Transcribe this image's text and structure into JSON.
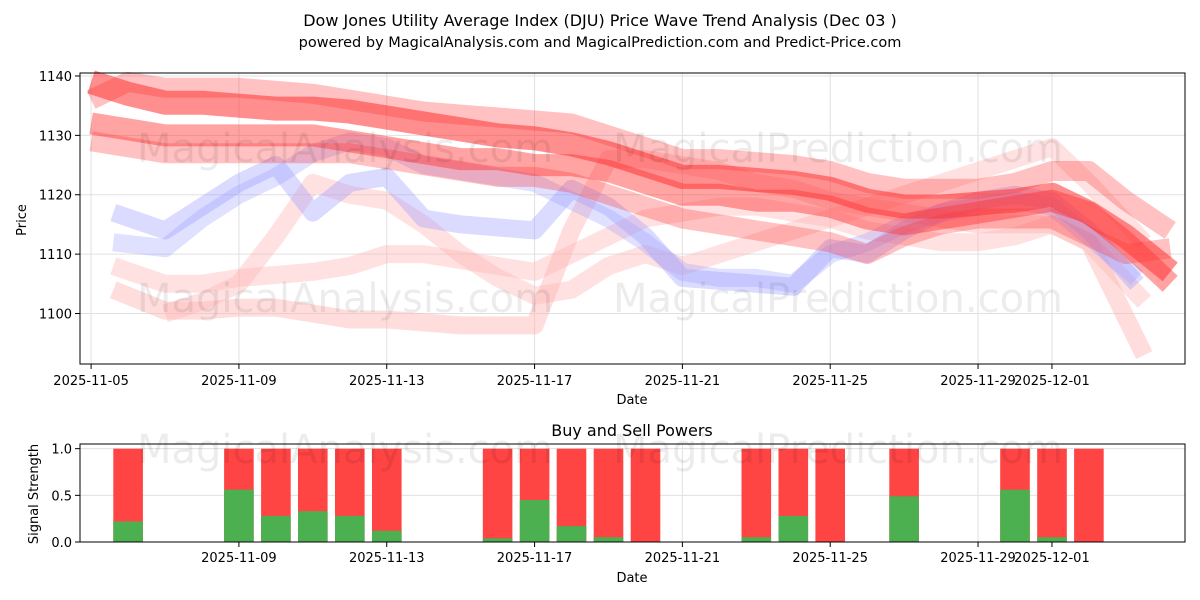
{
  "title": "Dow Jones Utility Average Index (DJU) Price Wave Trend Analysis (Dec 03 )",
  "subtitle": "powered by MagicalAnalysis.com and MagicalPrediction.com and Predict-Price.com",
  "watermarks": [
    "MagicalAnalysis.com",
    "MagicalPrediction.com"
  ],
  "colors": {
    "sell": "#ff4444",
    "buy": "#4caf50",
    "red_wave": "#ff3333",
    "pink_wave": "#ffb3b3",
    "blue_wave": "#9999ff",
    "grid": "#e0e0e0"
  },
  "chart_data": [
    {
      "type": "line",
      "title": "",
      "xlabel": "Date",
      "ylabel": "Price",
      "x_start": "2025-11-05",
      "xlim": [
        -0.3,
        29.6
      ],
      "ylim": [
        1091.5,
        1140.5
      ],
      "x_ticks": [
        {
          "day": 0,
          "label": "2025-11-05"
        },
        {
          "day": 4,
          "label": "2025-11-09"
        },
        {
          "day": 8,
          "label": "2025-11-13"
        },
        {
          "day": 12,
          "label": "2025-11-17"
        },
        {
          "day": 16,
          "label": "2025-11-21"
        },
        {
          "day": 20,
          "label": "2025-11-25"
        },
        {
          "day": 24,
          "label": "2025-11-29"
        },
        {
          "day": 26,
          "label": "2025-12-01"
        }
      ],
      "y_ticks": [
        1100,
        1110,
        1120,
        1130,
        1140
      ],
      "grid": true,
      "series": [
        {
          "name": "pink-wave-low",
          "color": "pink",
          "width": 18,
          "opacity": 0.45,
          "x": [
            0.6,
            2,
            3,
            4,
            5,
            6,
            7,
            8,
            9,
            10,
            11,
            12,
            13,
            14,
            15,
            16,
            17,
            18,
            19,
            20,
            21,
            22,
            23,
            24,
            25,
            26,
            27,
            28.5
          ],
          "y": [
            1104,
            1100.5,
            1100.5,
            1101,
            1101,
            1100,
            1099,
            1099,
            1098.5,
            1098,
            1098,
            1098,
            1114,
            1126,
            1126,
            1125,
            1124,
            1122,
            1121,
            1119,
            1118,
            1117,
            1116,
            1115,
            1115,
            1115,
            1112,
            1093
          ]
        },
        {
          "name": "pink-wave-mid",
          "color": "pink",
          "width": 18,
          "opacity": 0.4,
          "x": [
            0.6,
            2,
            3,
            4,
            5,
            6,
            7,
            8,
            9,
            10,
            11,
            12,
            13,
            14,
            15,
            16,
            17,
            18,
            19,
            20,
            21,
            22,
            23,
            24,
            25,
            26,
            27,
            28.5
          ],
          "y": [
            1108,
            1105,
            1105,
            1106,
            1106.5,
            1107,
            1108,
            1110,
            1110,
            1109,
            1108,
            1107,
            1110,
            1113,
            1116,
            1117,
            1118,
            1118,
            1117,
            1116,
            1114,
            1113,
            1112,
            1112,
            1113,
            1115,
            1112,
            1102
          ]
        },
        {
          "name": "pink-wave-high",
          "color": "pink",
          "width": 18,
          "opacity": 0.4,
          "x": [
            2,
            3,
            4,
            5,
            6,
            7,
            8,
            9,
            10,
            11,
            12,
            13,
            14,
            15,
            16,
            17,
            18,
            19,
            20,
            21,
            22,
            23,
            24,
            25,
            26,
            27,
            28.5
          ],
          "y": [
            1100,
            1102,
            1105,
            1113,
            1122,
            1120,
            1119,
            1115,
            1110,
            1106,
            1103,
            1104,
            1108,
            1110,
            1108,
            1110,
            1112,
            1114,
            1116,
            1118,
            1120,
            1122,
            1124,
            1126,
            1128,
            1122,
            1112
          ]
        },
        {
          "name": "blue-wave",
          "color": "blue",
          "width": 18,
          "opacity": 0.35,
          "x": [
            0.6,
            2,
            3,
            4,
            5,
            6,
            7,
            8,
            9,
            10,
            11,
            12,
            13,
            14,
            15,
            16,
            17,
            18,
            19,
            20,
            21,
            22,
            23,
            24,
            25,
            26,
            27,
            28.3
          ],
          "y": [
            1117,
            1114,
            1118,
            1122,
            1125,
            1117,
            1122,
            1123,
            1116,
            1115,
            1114.5,
            1114,
            1121,
            1118,
            1113,
            1106,
            1105.5,
            1105,
            1104.5,
            1111,
            1110,
            1114,
            1117,
            1119,
            1120,
            1119,
            1114,
            1105
          ]
        },
        {
          "name": "blue-wave-2",
          "color": "blue",
          "width": 18,
          "opacity": 0.3,
          "x": [
            0.6,
            2,
            3,
            4,
            5,
            6,
            7,
            8,
            9,
            10,
            11,
            12,
            13,
            14,
            15,
            16,
            17,
            18,
            19,
            20,
            21,
            22,
            23,
            24,
            25,
            26,
            27,
            28.3
          ],
          "y": [
            1112,
            1111,
            1116,
            1120,
            1123,
            1127,
            1129,
            1128,
            1125,
            1124,
            1123,
            1122,
            1119,
            1116,
            1112,
            1107,
            1106,
            1106,
            1105,
            1110,
            1112,
            1115,
            1117,
            1118,
            1119,
            1118,
            1113,
            1106
          ]
        },
        {
          "name": "red-wave-band-low",
          "color": "red",
          "width": 20,
          "opacity": 0.3,
          "x": [
            0,
            1,
            2,
            3,
            4,
            5,
            6,
            7,
            8,
            9,
            10,
            11,
            12,
            13,
            14,
            15,
            16,
            17,
            18,
            19,
            20,
            21,
            22,
            23,
            24,
            25,
            26,
            27,
            28,
            29.2
          ],
          "y": [
            1129,
            1128,
            1127,
            1127,
            1127,
            1127,
            1127,
            1127,
            1126,
            1125,
            1124,
            1123,
            1123,
            1122,
            1120,
            1118,
            1116,
            1115,
            1114,
            1113,
            1112,
            1110,
            1113,
            1115,
            1116,
            1116,
            1116,
            1113,
            1110,
            1111
          ]
        },
        {
          "name": "red-wave-band-mid",
          "color": "red",
          "width": 22,
          "opacity": 0.45,
          "x": [
            0,
            1,
            2,
            3,
            4,
            5,
            6,
            7,
            8,
            9,
            10,
            11,
            12,
            13,
            14,
            15,
            16,
            17,
            18,
            19,
            20,
            21,
            22,
            23,
            24,
            25,
            26,
            27,
            28,
            29.2
          ],
          "y": [
            1132,
            1131,
            1130,
            1130,
            1130,
            1130,
            1130,
            1129,
            1128,
            1127,
            1126,
            1126,
            1125,
            1125,
            1124,
            1122,
            1120,
            1120,
            1119,
            1119,
            1118,
            1116,
            1115,
            1116,
            1117,
            1118,
            1119,
            1117,
            1112,
            1105
          ]
        },
        {
          "name": "red-wave-band-high",
          "color": "red",
          "width": 24,
          "opacity": 0.55,
          "x": [
            0,
            1,
            2,
            3,
            4,
            5,
            6,
            7,
            8,
            9,
            10,
            11,
            12,
            13,
            14,
            15,
            16,
            17,
            18,
            19,
            20,
            21,
            22,
            23,
            24,
            25,
            26,
            27,
            28,
            29.2
          ],
          "y": [
            1139,
            1137,
            1135.5,
            1135.5,
            1135,
            1134.5,
            1134.5,
            1134,
            1133,
            1132,
            1131,
            1130,
            1129.5,
            1128.5,
            1127,
            1125,
            1123,
            1123,
            1122.5,
            1122,
            1121,
            1119,
            1118,
            1118,
            1118.5,
            1119,
            1120,
            1117,
            1113,
            1107
          ]
        },
        {
          "name": "red-wave-top",
          "color": "red",
          "width": 20,
          "opacity": 0.3,
          "x": [
            0,
            1,
            2,
            3,
            4,
            5,
            6,
            7,
            8,
            9,
            10,
            11,
            12,
            13,
            14,
            15,
            16,
            17,
            18,
            19,
            20,
            21,
            22,
            23,
            24,
            25,
            26,
            27,
            28,
            29.2
          ],
          "y": [
            1136,
            1139,
            1138,
            1138,
            1138,
            1137.5,
            1137,
            1136,
            1135,
            1134,
            1133.5,
            1133,
            1132.5,
            1132,
            1130,
            1128,
            1126,
            1126,
            1125.5,
            1125,
            1124,
            1122,
            1121,
            1121,
            1121,
            1122,
            1124,
            1124,
            1119,
            1114
          ]
        }
      ]
    },
    {
      "type": "bar",
      "title": "Buy and Sell Powers",
      "xlabel": "Date",
      "ylabel": "Signal Strength",
      "ylim": [
        0,
        1.05
      ],
      "xlim": [
        -0.3,
        29.6
      ],
      "y_ticks": [
        0.0,
        0.5,
        1.0
      ],
      "y_tick_labels": [
        "0.0",
        "0.5",
        "1.0"
      ],
      "x_ticks": [
        {
          "day": 4,
          "label": "2025-11-09"
        },
        {
          "day": 8,
          "label": "2025-11-13"
        },
        {
          "day": 12,
          "label": "2025-11-17"
        },
        {
          "day": 16,
          "label": "2025-11-21"
        },
        {
          "day": 20,
          "label": "2025-11-25"
        },
        {
          "day": 24,
          "label": "2025-11-29"
        },
        {
          "day": 26,
          "label": "2025-12-01"
        }
      ],
      "series": [
        {
          "name": "Buy",
          "color": "green"
        },
        {
          "name": "Sell",
          "color": "red"
        }
      ],
      "bars": [
        {
          "day": 1,
          "buy": 0.22
        },
        {
          "day": 4,
          "buy": 0.56
        },
        {
          "day": 5,
          "buy": 0.28
        },
        {
          "day": 6,
          "buy": 0.33
        },
        {
          "day": 7,
          "buy": 0.28
        },
        {
          "day": 8,
          "buy": 0.12
        },
        {
          "day": 11,
          "buy": 0.04
        },
        {
          "day": 12,
          "buy": 0.45
        },
        {
          "day": 13,
          "buy": 0.17
        },
        {
          "day": 14,
          "buy": 0.05
        },
        {
          "day": 15,
          "buy": 0.0
        },
        {
          "day": 18,
          "buy": 0.05
        },
        {
          "day": 19,
          "buy": 0.28
        },
        {
          "day": 20,
          "buy": 0.0
        },
        {
          "day": 22,
          "buy": 0.49
        },
        {
          "day": 25,
          "buy": 0.56
        },
        {
          "day": 26,
          "buy": 0.05
        },
        {
          "day": 27,
          "buy": 0.0
        }
      ]
    }
  ]
}
